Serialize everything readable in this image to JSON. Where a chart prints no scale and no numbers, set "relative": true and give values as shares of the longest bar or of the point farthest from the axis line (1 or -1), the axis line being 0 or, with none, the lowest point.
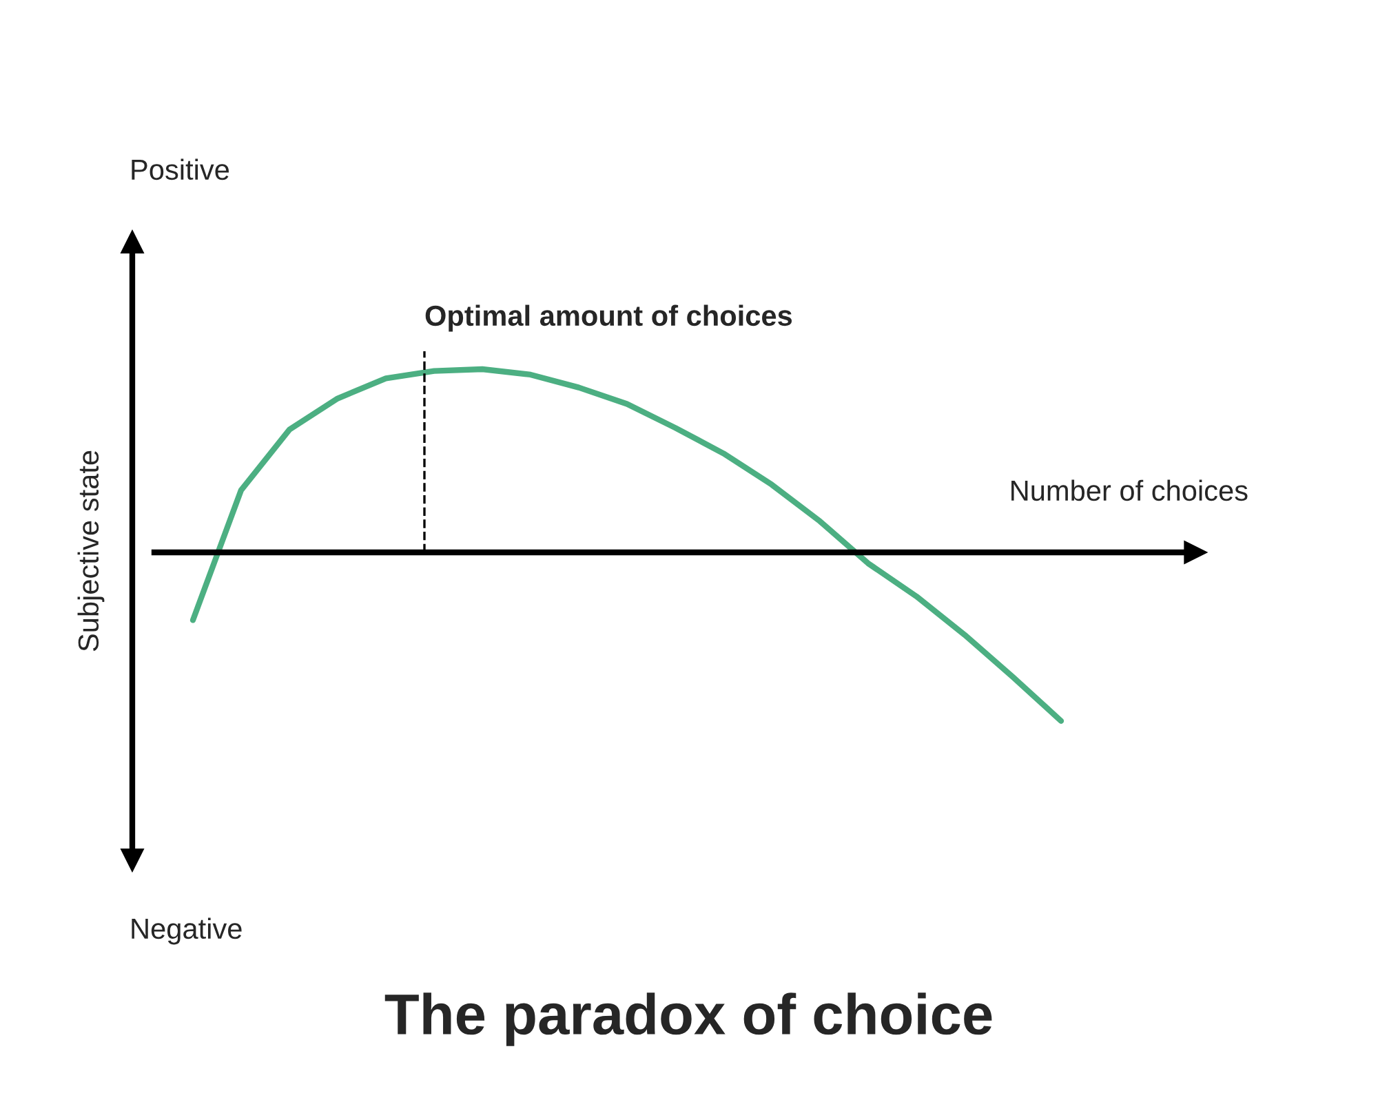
{
  "chart_data": {
    "type": "line",
    "relative": true,
    "title": "The paradox of choice",
    "xlabel": "Number of choices",
    "ylabel": "Subjective state",
    "annotations": [
      "Positive",
      "Negative",
      "Optimal amount of choices"
    ],
    "categories": [
      null,
      null,
      null,
      null,
      null,
      null,
      null,
      null,
      null,
      null,
      null,
      null,
      null,
      null,
      null,
      null,
      null,
      null,
      null
    ],
    "series": [
      {
        "color": "#4caf82",
        "values": [
          -0.37,
          0.34,
          0.67,
          0.84,
          0.95,
          0.99,
          1.0,
          0.97,
          0.9,
          0.81,
          0.68,
          0.54,
          0.37,
          0.17,
          -0.06,
          -0.24,
          -0.45,
          -0.68,
          -0.92
        ]
      }
    ]
  }
}
